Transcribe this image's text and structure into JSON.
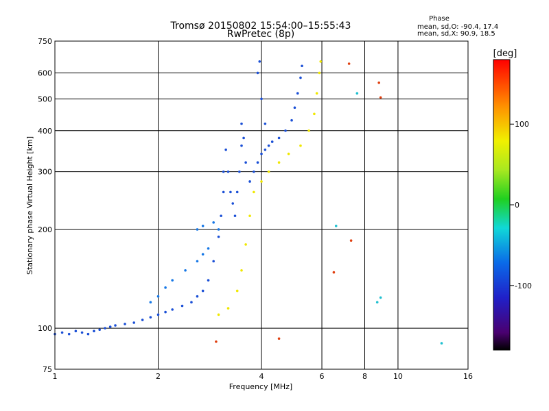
{
  "chart_data": {
    "type": "scatter",
    "title": "Tromsø 20150802 15:54:00–15:55:43",
    "subtitle": "RwPretec (8p)",
    "xlabel": "Frequency [MHz]",
    "ylabel": "Stationary phase Virtual Height [km]",
    "xscale": "log",
    "yscale": "log",
    "xlim": [
      1,
      16
    ],
    "ylim": [
      75,
      750
    ],
    "xticks": [
      1,
      2,
      4,
      6,
      8,
      10,
      16
    ],
    "yticks": [
      75,
      100,
      200,
      300,
      400,
      500,
      600,
      750
    ],
    "grid": true,
    "phase_box": {
      "title": "Phase",
      "line1": "mean, sd,O: -90.4, 17.4",
      "line2": "mean, sd,X:  90.9, 18.5"
    },
    "colorbar": {
      "label": "[deg]",
      "range": [
        -180,
        180
      ],
      "ticks": [
        100,
        0,
        -100
      ]
    },
    "series": [
      {
        "description_color": "#1a4fd6",
        "phase": -100,
        "points": [
          [
            1.0,
            96
          ],
          [
            1.05,
            97
          ],
          [
            1.1,
            96
          ],
          [
            1.15,
            98
          ],
          [
            1.2,
            97
          ],
          [
            1.25,
            96
          ],
          [
            1.3,
            98
          ],
          [
            1.35,
            99
          ],
          [
            1.4,
            100
          ],
          [
            1.45,
            101
          ],
          [
            1.5,
            102
          ],
          [
            1.6,
            103
          ],
          [
            1.7,
            104
          ],
          [
            1.8,
            106
          ],
          [
            1.9,
            108
          ],
          [
            2.0,
            110
          ],
          [
            2.1,
            112
          ],
          [
            2.2,
            114
          ],
          [
            2.35,
            117
          ],
          [
            2.5,
            120
          ],
          [
            2.6,
            125
          ],
          [
            2.7,
            130
          ],
          [
            2.8,
            140
          ],
          [
            2.9,
            160
          ],
          [
            3.0,
            190
          ],
          [
            3.05,
            220
          ],
          [
            3.1,
            260
          ],
          [
            3.1,
            300
          ],
          [
            3.15,
            350
          ],
          [
            3.2,
            300
          ],
          [
            3.25,
            260
          ],
          [
            3.3,
            240
          ],
          [
            3.35,
            220
          ],
          [
            3.4,
            260
          ],
          [
            3.45,
            300
          ],
          [
            3.5,
            360
          ],
          [
            3.5,
            420
          ],
          [
            3.55,
            380
          ],
          [
            3.6,
            320
          ],
          [
            3.7,
            280
          ],
          [
            3.8,
            300
          ],
          [
            3.9,
            320
          ],
          [
            4.0,
            340
          ],
          [
            4.1,
            350
          ],
          [
            4.2,
            360
          ],
          [
            4.3,
            370
          ],
          [
            4.5,
            380
          ],
          [
            4.7,
            400
          ],
          [
            4.9,
            430
          ],
          [
            5.0,
            470
          ],
          [
            5.1,
            520
          ],
          [
            5.2,
            580
          ],
          [
            5.25,
            630
          ],
          [
            4.1,
            420
          ],
          [
            4.0,
            500
          ],
          [
            3.9,
            600
          ],
          [
            3.95,
            650
          ]
        ]
      },
      {
        "description_color": "#1577e6",
        "phase": -75,
        "points": [
          [
            1.9,
            120
          ],
          [
            2.0,
            125
          ],
          [
            2.1,
            133
          ],
          [
            2.2,
            140
          ],
          [
            2.4,
            150
          ],
          [
            2.6,
            160
          ],
          [
            2.7,
            168
          ],
          [
            2.8,
            175
          ],
          [
            2.6,
            200
          ],
          [
            2.7,
            205
          ],
          [
            2.9,
            210
          ],
          [
            3.0,
            200
          ]
        ]
      },
      {
        "description_color": "#f0e800",
        "phase": 100,
        "points": [
          [
            3.0,
            110
          ],
          [
            3.2,
            115
          ],
          [
            3.4,
            130
          ],
          [
            3.5,
            150
          ],
          [
            3.6,
            180
          ],
          [
            3.7,
            220
          ],
          [
            3.8,
            260
          ],
          [
            4.0,
            280
          ],
          [
            4.2,
            300
          ],
          [
            4.5,
            320
          ],
          [
            4.8,
            340
          ],
          [
            5.2,
            360
          ],
          [
            5.5,
            400
          ],
          [
            5.7,
            450
          ],
          [
            5.8,
            520
          ],
          [
            5.9,
            600
          ],
          [
            5.95,
            650
          ]
        ]
      },
      {
        "description_color": "#e04010",
        "phase": 160,
        "points": [
          [
            2.95,
            91
          ],
          [
            4.5,
            93
          ],
          [
            7.2,
            640
          ],
          [
            8.8,
            560
          ],
          [
            8.9,
            505
          ],
          [
            7.3,
            185
          ],
          [
            6.5,
            148
          ]
        ]
      },
      {
        "description_color": "#20c0d0",
        "phase": -40,
        "points": [
          [
            8.7,
            120
          ],
          [
            8.9,
            124
          ],
          [
            13.4,
            90
          ],
          [
            7.6,
            520
          ],
          [
            6.6,
            205
          ]
        ]
      }
    ]
  }
}
